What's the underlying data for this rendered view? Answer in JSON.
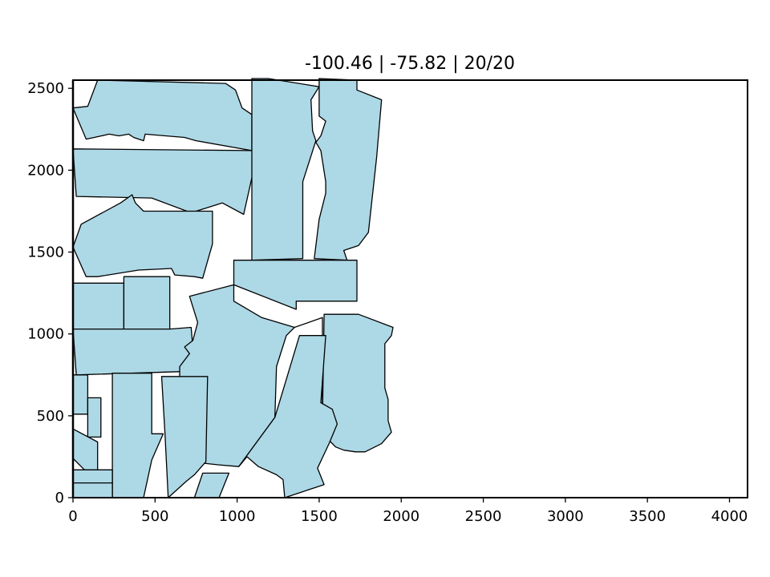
{
  "chart_data": {
    "type": "polygon-layout",
    "title": "-100.46 | -75.82 | 20/20",
    "xlabel": "",
    "ylabel": "",
    "xlim": [
      0,
      4110
    ],
    "ylim": [
      0,
      2550
    ],
    "xticks": [
      0,
      500,
      1000,
      1500,
      2000,
      2500,
      3000,
      3500,
      4000
    ],
    "yticks": [
      0,
      500,
      1000,
      1500,
      2000,
      2500
    ],
    "grid": false,
    "fill_color": "#add8e6",
    "edge_color": "#000000",
    "polygons": [
      {
        "name": "piece-1",
        "points": [
          [
            0,
            2380
          ],
          [
            90,
            2390
          ],
          [
            150,
            2550
          ],
          [
            930,
            2530
          ],
          [
            990,
            2490
          ],
          [
            1030,
            2380
          ],
          [
            1090,
            2340
          ],
          [
            1090,
            2120
          ],
          [
            750,
            2180
          ],
          [
            680,
            2200
          ],
          [
            440,
            2220
          ],
          [
            430,
            2180
          ],
          [
            370,
            2200
          ],
          [
            340,
            2220
          ],
          [
            280,
            2210
          ],
          [
            220,
            2220
          ],
          [
            130,
            2200
          ],
          [
            80,
            2190
          ],
          [
            0,
            2380
          ]
        ]
      },
      {
        "name": "piece-2",
        "points": [
          [
            0,
            2130
          ],
          [
            1090,
            2120
          ],
          [
            1100,
            2000
          ],
          [
            1040,
            1730
          ],
          [
            910,
            1800
          ],
          [
            720,
            1740
          ],
          [
            480,
            1830
          ],
          [
            20,
            1840
          ],
          [
            0,
            2130
          ]
        ]
      },
      {
        "name": "piece-3",
        "points": [
          [
            0,
            1530
          ],
          [
            50,
            1670
          ],
          [
            290,
            1800
          ],
          [
            360,
            1850
          ],
          [
            380,
            1800
          ],
          [
            430,
            1750
          ],
          [
            850,
            1750
          ],
          [
            850,
            1550
          ],
          [
            790,
            1340
          ],
          [
            740,
            1350
          ],
          [
            620,
            1360
          ],
          [
            600,
            1400
          ],
          [
            400,
            1390
          ],
          [
            150,
            1350
          ],
          [
            80,
            1350
          ],
          [
            0,
            1530
          ]
        ]
      },
      {
        "name": "piece-4",
        "points": [
          [
            1090,
            2560
          ],
          [
            1190,
            2560
          ],
          [
            1500,
            2510
          ],
          [
            1450,
            2430
          ],
          [
            1460,
            2240
          ],
          [
            1480,
            2180
          ],
          [
            1400,
            1930
          ],
          [
            1400,
            1460
          ],
          [
            1090,
            1450
          ],
          [
            1090,
            2560
          ]
        ]
      },
      {
        "name": "piece-5",
        "points": [
          [
            1500,
            2560
          ],
          [
            1730,
            2550
          ],
          [
            1730,
            2490
          ],
          [
            1880,
            2430
          ],
          [
            1850,
            2080
          ],
          [
            1800,
            1620
          ],
          [
            1740,
            1540
          ],
          [
            1650,
            1510
          ],
          [
            1670,
            1450
          ],
          [
            1470,
            1460
          ],
          [
            1500,
            1700
          ],
          [
            1540,
            1860
          ],
          [
            1540,
            1930
          ],
          [
            1510,
            2120
          ],
          [
            1480,
            2170
          ],
          [
            1510,
            2210
          ],
          [
            1540,
            2300
          ],
          [
            1500,
            2330
          ],
          [
            1500,
            2560
          ]
        ]
      },
      {
        "name": "piece-6",
        "points": [
          [
            980,
            1450
          ],
          [
            1730,
            1450
          ],
          [
            1730,
            1200
          ],
          [
            1360,
            1200
          ],
          [
            1360,
            1150
          ],
          [
            980,
            1300
          ],
          [
            980,
            1450
          ]
        ]
      },
      {
        "name": "piece-7",
        "points": [
          [
            0,
            1310
          ],
          [
            310,
            1310
          ],
          [
            310,
            1030
          ],
          [
            0,
            1030
          ],
          [
            0,
            1310
          ]
        ]
      },
      {
        "name": "piece-8",
        "points": [
          [
            310,
            1350
          ],
          [
            590,
            1350
          ],
          [
            590,
            1030
          ],
          [
            310,
            1030
          ],
          [
            310,
            1350
          ]
        ]
      },
      {
        "name": "piece-9",
        "points": [
          [
            0,
            1030
          ],
          [
            590,
            1030
          ],
          [
            720,
            1040
          ],
          [
            740,
            800
          ],
          [
            660,
            770
          ],
          [
            20,
            750
          ],
          [
            0,
            1030
          ]
        ]
      },
      {
        "name": "piece-10",
        "points": [
          [
            980,
            1300
          ],
          [
            710,
            1230
          ],
          [
            760,
            1070
          ],
          [
            730,
            960
          ],
          [
            680,
            920
          ],
          [
            710,
            880
          ],
          [
            650,
            800
          ],
          [
            650,
            530
          ],
          [
            630,
            300
          ],
          [
            650,
            220
          ],
          [
            800,
            210
          ],
          [
            890,
            200
          ],
          [
            1010,
            190
          ],
          [
            1230,
            490
          ],
          [
            1240,
            800
          ],
          [
            1300,
            990
          ],
          [
            1350,
            1040
          ],
          [
            1150,
            1100
          ],
          [
            980,
            1200
          ],
          [
            980,
            1300
          ]
        ]
      },
      {
        "name": "piece-11",
        "points": [
          [
            1350,
            1040
          ],
          [
            1520,
            1100
          ],
          [
            1520,
            480
          ],
          [
            1530,
            1120
          ],
          [
            1740,
            1120
          ],
          [
            1950,
            1040
          ],
          [
            1940,
            990
          ],
          [
            1900,
            940
          ],
          [
            1900,
            780
          ],
          [
            1900,
            670
          ],
          [
            1920,
            600
          ],
          [
            1920,
            470
          ],
          [
            1940,
            400
          ],
          [
            1880,
            330
          ],
          [
            1780,
            280
          ],
          [
            1720,
            280
          ],
          [
            1650,
            290
          ],
          [
            1600,
            310
          ],
          [
            1570,
            340
          ],
          [
            1540,
            380
          ],
          [
            1490,
            490
          ],
          [
            1460,
            570
          ],
          [
            1420,
            660
          ],
          [
            1430,
            720
          ],
          [
            1480,
            750
          ],
          [
            1520,
            790
          ],
          [
            1520,
            1100
          ],
          [
            1350,
            1040
          ]
        ]
      },
      {
        "name": "piece-12",
        "points": [
          [
            1230,
            490
          ],
          [
            1380,
            990
          ],
          [
            1540,
            990
          ],
          [
            1510,
            580
          ],
          [
            1580,
            540
          ],
          [
            1610,
            450
          ],
          [
            1560,
            330
          ],
          [
            1490,
            180
          ],
          [
            1530,
            80
          ],
          [
            1290,
            0
          ],
          [
            1280,
            110
          ],
          [
            1240,
            140
          ],
          [
            1130,
            190
          ],
          [
            1060,
            250
          ],
          [
            1010,
            190
          ],
          [
            1230,
            490
          ]
        ]
      },
      {
        "name": "piece-13",
        "points": [
          [
            0,
            750
          ],
          [
            90,
            750
          ],
          [
            90,
            510
          ],
          [
            0,
            510
          ],
          [
            0,
            750
          ]
        ]
      },
      {
        "name": "piece-14",
        "points": [
          [
            90,
            610
          ],
          [
            170,
            610
          ],
          [
            170,
            370
          ],
          [
            90,
            370
          ],
          [
            90,
            610
          ]
        ]
      },
      {
        "name": "piece-15",
        "points": [
          [
            0,
            420
          ],
          [
            150,
            340
          ],
          [
            150,
            160
          ],
          [
            70,
            170
          ],
          [
            0,
            240
          ],
          [
            0,
            420
          ]
        ]
      },
      {
        "name": "piece-16",
        "points": [
          [
            240,
            760
          ],
          [
            480,
            760
          ],
          [
            480,
            390
          ],
          [
            550,
            390
          ],
          [
            480,
            230
          ],
          [
            430,
            0
          ],
          [
            240,
            0
          ],
          [
            240,
            760
          ]
        ]
      },
      {
        "name": "piece-17",
        "points": [
          [
            540,
            740
          ],
          [
            820,
            740
          ],
          [
            810,
            220
          ],
          [
            740,
            140
          ],
          [
            690,
            100
          ],
          [
            580,
            0
          ],
          [
            560,
            400
          ],
          [
            540,
            740
          ]
        ]
      },
      {
        "name": "piece-18",
        "points": [
          [
            0,
            170
          ],
          [
            240,
            170
          ],
          [
            240,
            90
          ],
          [
            0,
            90
          ],
          [
            0,
            170
          ]
        ]
      },
      {
        "name": "piece-19",
        "points": [
          [
            0,
            90
          ],
          [
            240,
            90
          ],
          [
            240,
            0
          ],
          [
            0,
            0
          ],
          [
            0,
            90
          ]
        ]
      },
      {
        "name": "piece-20",
        "points": [
          [
            740,
            0
          ],
          [
            890,
            0
          ],
          [
            950,
            150
          ],
          [
            790,
            150
          ],
          [
            740,
            0
          ]
        ]
      }
    ]
  }
}
